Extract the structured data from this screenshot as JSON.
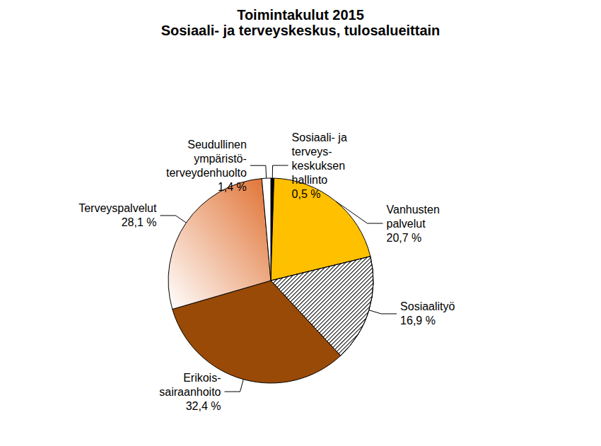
{
  "chart_data": {
    "type": "pie",
    "title": "Toimintakulut 2015",
    "subtitle": "Sosiaali- ja terveyskeskus, tulosalueittain",
    "categories": [
      "Sosiaali- ja\nterveys-\nkeskuksen\nhallinto",
      "Vanhusten\npalvelut",
      "Sosiaalityö",
      "Erikois-\nsairaanhoito",
      "Terveyspalvelut",
      "Seudullinen\nympäristö-\nterveydenhuolto"
    ],
    "values": [
      0.5,
      20.7,
      16.9,
      32.4,
      28.1,
      1.4
    ],
    "value_labels": [
      "0,5 %",
      "20,7 %",
      "16,9 %",
      "32,4 %",
      "28,1 %",
      "1,4 %"
    ],
    "colors": [
      "#000000",
      "#FFC000",
      "#ffffff",
      "#994A06",
      "#E07030",
      "#ffffff"
    ],
    "data_labels": true
  }
}
